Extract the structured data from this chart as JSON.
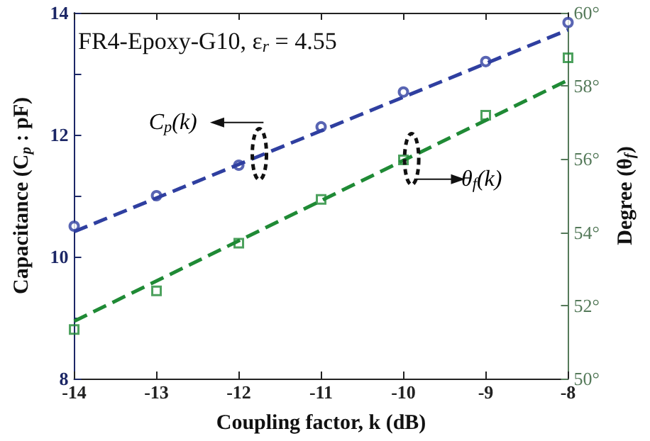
{
  "chart_data": {
    "type": "scatter",
    "title": "FR4-Epoxy-G10, ε$_{r}$ = 4.55",
    "xlabel": "Coupling factor, k (dB)",
    "ylabel": "Capacitance (C$_{p}$ : pF)",
    "y2label": "Degree (θ$_{f}$)",
    "annotations": [
      "C$_{p}$(k)",
      "θ$_{f}$(k)"
    ],
    "x": [
      -14,
      -13,
      -12,
      -11,
      -10,
      -9,
      -8
    ],
    "series": [
      {
        "color": "#2f3fa0",
        "marker": "circle",
        "values": [
          10.5,
          11.0,
          11.5,
          12.13,
          12.7,
          13.2,
          13.84
        ]
      },
      {
        "type": "line",
        "color": "#2f3fa0",
        "marker": "none",
        "line_style": "dashed",
        "values": [
          10.41,
          null,
          null,
          null,
          null,
          null,
          13.72
        ]
      },
      {
        "color": "#1f8a35",
        "marker": "square",
        "axis": "y2",
        "values": [
          51.34,
          52.4,
          53.7,
          54.9,
          55.98,
          57.2,
          58.77
        ]
      },
      {
        "type": "line",
        "color": "#1f8a35",
        "marker": "none",
        "line_style": "dashed",
        "axis": "y2",
        "values": [
          51.57,
          null,
          null,
          null,
          null,
          null,
          58.16
        ]
      }
    ],
    "xlim": [
      -14,
      -8
    ],
    "xticks": [
      -14,
      -13,
      -12,
      -11,
      -10,
      -9,
      -8
    ],
    "ylim": [
      8,
      14
    ],
    "yticks": [
      8,
      {
        "value": 9,
        "label": null
      },
      10,
      {
        "value": 11,
        "label": null
      },
      12,
      {
        "value": 13,
        "label": null
      },
      14
    ],
    "y2lim": [
      50,
      60
    ],
    "y2ticks": [
      {
        "value": 50,
        "label": "50°"
      },
      {
        "value": 52,
        "label": "52°"
      },
      {
        "value": 54,
        "label": "54°"
      },
      {
        "value": 56,
        "label": "56°"
      },
      {
        "value": 58,
        "label": "58°"
      },
      {
        "value": 60,
        "label": "60°"
      }
    ],
    "grid": false
  }
}
